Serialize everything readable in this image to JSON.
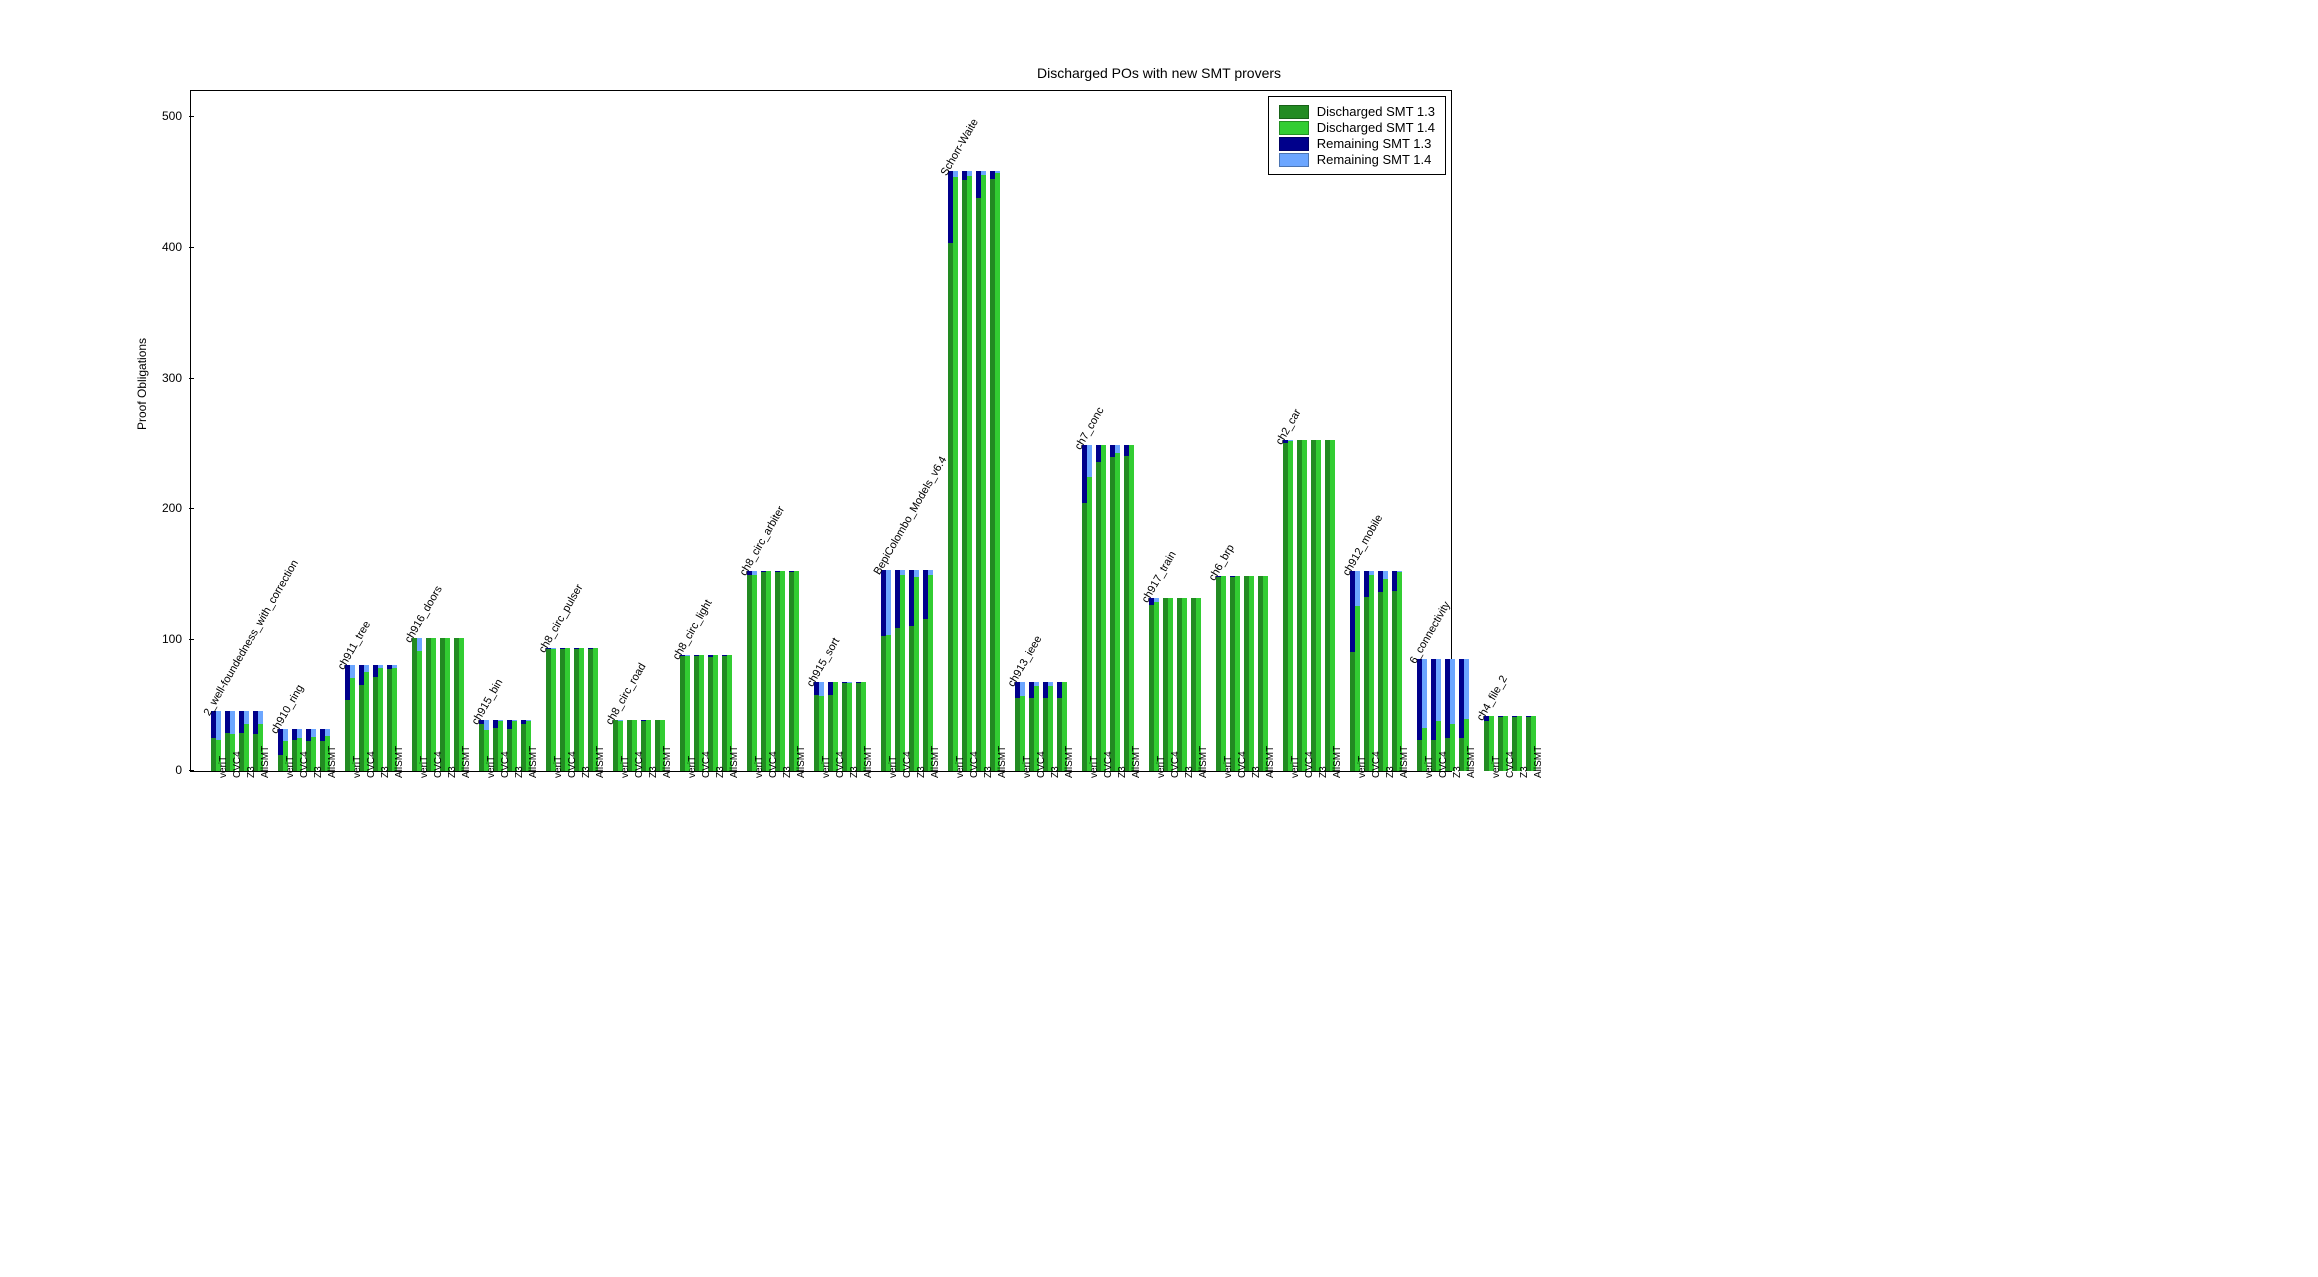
{
  "chart": {
    "title": "Discharged POs with new SMT provers",
    "ylabel": "Proof Obligations",
    "ylim": [
      0,
      520
    ],
    "yticks": [
      0,
      100,
      200,
      300,
      400,
      500
    ],
    "colors": {
      "disch_13": "#228b22",
      "disch_14": "#32cd32",
      "remain_13": "#00008b",
      "remain_14": "#6ca6ff"
    },
    "solvers": [
      "veriT",
      "CVC4",
      "Z3",
      "AllSMT"
    ],
    "legend": {
      "disch_13": "Discharged SMT 1.3",
      "disch_14": "Discharged SMT 1.4",
      "remain_13": "Remaining SMT 1.3",
      "remain_14": "Remaining SMT 1.4"
    },
    "groups": [
      {
        "name": "2_well-foundedness_with_correction",
        "total": 46,
        "solvers": [
          {
            "d13": 25,
            "d14": 24
          },
          {
            "d13": 29,
            "d14": 28
          },
          {
            "d13": 29,
            "d14": 36
          },
          {
            "d13": 28,
            "d14": 36
          }
        ]
      },
      {
        "name": "ch910_ring",
        "total": 32,
        "solvers": [
          {
            "d13": 12,
            "d14": 23
          },
          {
            "d13": 24,
            "d14": 25
          },
          {
            "d13": 23,
            "d14": 26
          },
          {
            "d13": 23,
            "d14": 27
          }
        ]
      },
      {
        "name": "ch911_tree",
        "total": 81,
        "solvers": [
          {
            "d13": 54,
            "d14": 71
          },
          {
            "d13": 66,
            "d14": 76
          },
          {
            "d13": 72,
            "d14": 79
          },
          {
            "d13": 78,
            "d14": 79
          }
        ]
      },
      {
        "name": "ch916_doors",
        "total": 102,
        "solvers": [
          {
            "d13": 102,
            "d14": 92
          },
          {
            "d13": 102,
            "d14": 102
          },
          {
            "d13": 102,
            "d14": 102
          },
          {
            "d13": 102,
            "d14": 102
          }
        ]
      },
      {
        "name": "ch915_bin",
        "total": 39,
        "solvers": [
          {
            "d13": 36,
            "d14": 31
          },
          {
            "d13": 33,
            "d14": 38
          },
          {
            "d13": 32,
            "d14": 38
          },
          {
            "d13": 36,
            "d14": 38
          }
        ]
      },
      {
        "name": "ch8_circ_pulser",
        "total": 94,
        "solvers": [
          {
            "d13": 93,
            "d14": 93
          },
          {
            "d13": 93,
            "d14": 94
          },
          {
            "d13": 93,
            "d14": 94
          },
          {
            "d13": 93,
            "d14": 94
          }
        ]
      },
      {
        "name": "ch8_circ_road",
        "total": 39,
        "solvers": [
          {
            "d13": 39,
            "d14": 38
          },
          {
            "d13": 39,
            "d14": 39
          },
          {
            "d13": 38,
            "d14": 39
          },
          {
            "d13": 39,
            "d14": 39
          }
        ]
      },
      {
        "name": "ch8_circ_light",
        "total": 89,
        "solvers": [
          {
            "d13": 88,
            "d14": 88
          },
          {
            "d13": 88,
            "d14": 89
          },
          {
            "d13": 87,
            "d14": 89
          },
          {
            "d13": 88,
            "d14": 89
          }
        ]
      },
      {
        "name": "ch8_circ_arbiter",
        "total": 153,
        "solvers": [
          {
            "d13": 150,
            "d14": 150
          },
          {
            "d13": 152,
            "d14": 153
          },
          {
            "d13": 152,
            "d14": 153
          },
          {
            "d13": 152,
            "d14": 153
          }
        ]
      },
      {
        "name": "ch915_sort",
        "total": 68,
        "solvers": [
          {
            "d13": 58,
            "d14": 57
          },
          {
            "d13": 58,
            "d14": 68
          },
          {
            "d13": 67,
            "d14": 67
          },
          {
            "d13": 67,
            "d14": 68
          }
        ]
      },
      {
        "name": "BepiColombo_Models_v6.4",
        "total": 154,
        "solvers": [
          {
            "d13": 103,
            "d14": 104
          },
          {
            "d13": 109,
            "d14": 150
          },
          {
            "d13": 111,
            "d14": 148
          },
          {
            "d13": 116,
            "d14": 150
          }
        ]
      },
      {
        "name": "Schorr-Waite",
        "total": 459,
        "solvers": [
          {
            "d13": 404,
            "d14": 454
          },
          {
            "d13": 452,
            "d14": 455
          },
          {
            "d13": 438,
            "d14": 456
          },
          {
            "d13": 453,
            "d14": 457
          }
        ]
      },
      {
        "name": "ch913_ieee",
        "total": 68,
        "solvers": [
          {
            "d13": 56,
            "d14": 57
          },
          {
            "d13": 56,
            "d14": 65
          },
          {
            "d13": 56,
            "d14": 65
          },
          {
            "d13": 56,
            "d14": 68
          }
        ]
      },
      {
        "name": "ch7_conc",
        "total": 249,
        "solvers": [
          {
            "d13": 205,
            "d14": 225
          },
          {
            "d13": 236,
            "d14": 249
          },
          {
            "d13": 240,
            "d14": 243
          },
          {
            "d13": 241,
            "d14": 249
          }
        ]
      },
      {
        "name": "ch917_train",
        "total": 132,
        "solvers": [
          {
            "d13": 127,
            "d14": 129
          },
          {
            "d13": 132,
            "d14": 132
          },
          {
            "d13": 132,
            "d14": 132
          },
          {
            "d13": 132,
            "d14": 132
          }
        ]
      },
      {
        "name": "ch6_brp",
        "total": 149,
        "solvers": [
          {
            "d13": 148,
            "d14": 149
          },
          {
            "d13": 148,
            "d14": 149
          },
          {
            "d13": 149,
            "d14": 149
          },
          {
            "d13": 149,
            "d14": 149
          }
        ]
      },
      {
        "name": "ch2_car",
        "total": 253,
        "solvers": [
          {
            "d13": 251,
            "d14": 252
          },
          {
            "d13": 253,
            "d14": 253
          },
          {
            "d13": 253,
            "d14": 253
          },
          {
            "d13": 253,
            "d14": 253
          }
        ]
      },
      {
        "name": "ch912_mobile",
        "total": 153,
        "solvers": [
          {
            "d13": 91,
            "d14": 126
          },
          {
            "d13": 133,
            "d14": 150
          },
          {
            "d13": 137,
            "d14": 147
          },
          {
            "d13": 138,
            "d14": 152
          }
        ]
      },
      {
        "name": "6_connectivity",
        "total": 86,
        "solvers": [
          {
            "d13": 24,
            "d14": 33
          },
          {
            "d13": 24,
            "d14": 38
          },
          {
            "d13": 25,
            "d14": 36
          },
          {
            "d13": 25,
            "d14": 40
          }
        ]
      },
      {
        "name": "ch4_file_2",
        "total": 42,
        "solvers": [
          {
            "d13": 38,
            "d14": 42
          },
          {
            "d13": 41,
            "d14": 42
          },
          {
            "d13": 41,
            "d14": 42
          },
          {
            "d13": 41,
            "d14": 42
          }
        ]
      }
    ]
  }
}
